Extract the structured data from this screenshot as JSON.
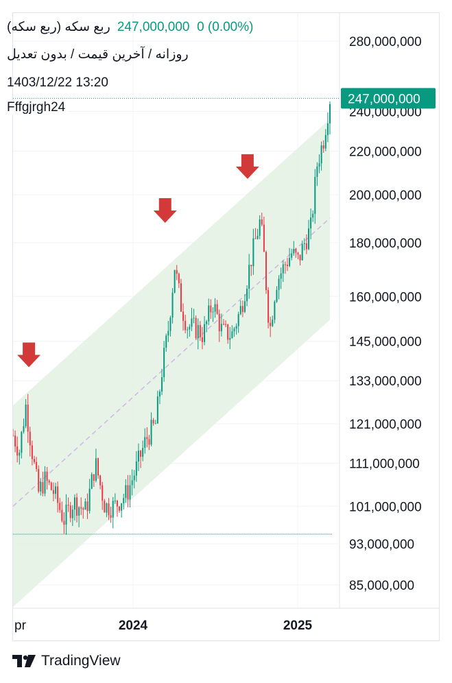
{
  "header": {
    "symbol_title": "ربع سکه (ربع سکه)",
    "last_price": "247,000,000",
    "change": "0 (0.00%)",
    "subtitle": "روزانه / آخرین قیمت / بدون تعدیل",
    "datetime": "1403/12/22 13:20",
    "author": "Fffgjrgh24"
  },
  "footer": {
    "brand": "TradingView"
  },
  "colors": {
    "up": "#089981",
    "down": "#f23645",
    "channel_fill": "#e3f2e3",
    "midline": "#d4b4e6",
    "arrow": "#d23a3a",
    "price_tag": "#089981"
  },
  "chart_data": {
    "type": "candlestick",
    "price_scale": "logarithmic",
    "y_ticks": [
      280000000,
      240000000,
      220000000,
      200000000,
      180000000,
      160000000,
      145000000,
      133000000,
      121000000,
      111000000,
      101000000,
      93000000,
      85000000
    ],
    "y_tick_labels": [
      "280,000,000",
      "240,000,000",
      "220,000,000",
      "200,000,000",
      "180,000,000",
      "160,000,000",
      "145,000,000",
      "133,000,000",
      "121,000,000",
      "111,000,000",
      "101,000,000",
      "93,000,000",
      "85,000,000"
    ],
    "x_tick_labels": [
      "pr",
      "2024",
      "2025"
    ],
    "last_price_label": "247,000,000",
    "last_price": 247000000,
    "ylim": [
      81000000,
      300000000
    ],
    "grid": true,
    "channel": {
      "upper": [
        [
          0,
          126000000
        ],
        [
          1,
          236000000
        ]
      ],
      "lower": [
        [
          0,
          81000000
        ],
        [
          1,
          152000000
        ]
      ],
      "midline": [
        [
          0,
          101000000
        ],
        [
          1,
          190000000
        ]
      ]
    },
    "arrow_markers": [
      {
        "t": 0.05,
        "price": 137000000
      },
      {
        "t": 0.48,
        "price": 188000000
      },
      {
        "t": 0.74,
        "price": 207000000
      }
    ],
    "baseline_price": 95000000,
    "path_keypoints": [
      [
        0.0,
        118000000
      ],
      [
        0.02,
        114000000
      ],
      [
        0.04,
        126000000
      ],
      [
        0.06,
        114000000
      ],
      [
        0.08,
        104000000
      ],
      [
        0.1,
        107000000
      ],
      [
        0.13,
        104000000
      ],
      [
        0.16,
        98000000
      ],
      [
        0.19,
        102000000
      ],
      [
        0.23,
        100000000
      ],
      [
        0.26,
        111000000
      ],
      [
        0.29,
        101000000
      ],
      [
        0.32,
        101000000
      ],
      [
        0.36,
        104000000
      ],
      [
        0.39,
        110000000
      ],
      [
        0.42,
        117000000
      ],
      [
        0.45,
        121000000
      ],
      [
        0.47,
        136000000
      ],
      [
        0.49,
        149000000
      ],
      [
        0.51,
        171000000
      ],
      [
        0.53,
        157000000
      ],
      [
        0.55,
        150000000
      ],
      [
        0.58,
        149000000
      ],
      [
        0.6,
        147000000
      ],
      [
        0.63,
        158000000
      ],
      [
        0.66,
        148000000
      ],
      [
        0.69,
        147000000
      ],
      [
        0.72,
        156000000
      ],
      [
        0.75,
        173000000
      ],
      [
        0.78,
        189000000
      ],
      [
        0.79,
        178000000
      ],
      [
        0.81,
        148000000
      ],
      [
        0.83,
        165000000
      ],
      [
        0.86,
        172000000
      ],
      [
        0.88,
        176000000
      ],
      [
        0.9,
        173000000
      ],
      [
        0.92,
        180000000
      ],
      [
        0.94,
        186000000
      ],
      [
        0.96,
        214000000
      ],
      [
        0.98,
        226000000
      ],
      [
        1.0,
        247000000
      ]
    ]
  }
}
